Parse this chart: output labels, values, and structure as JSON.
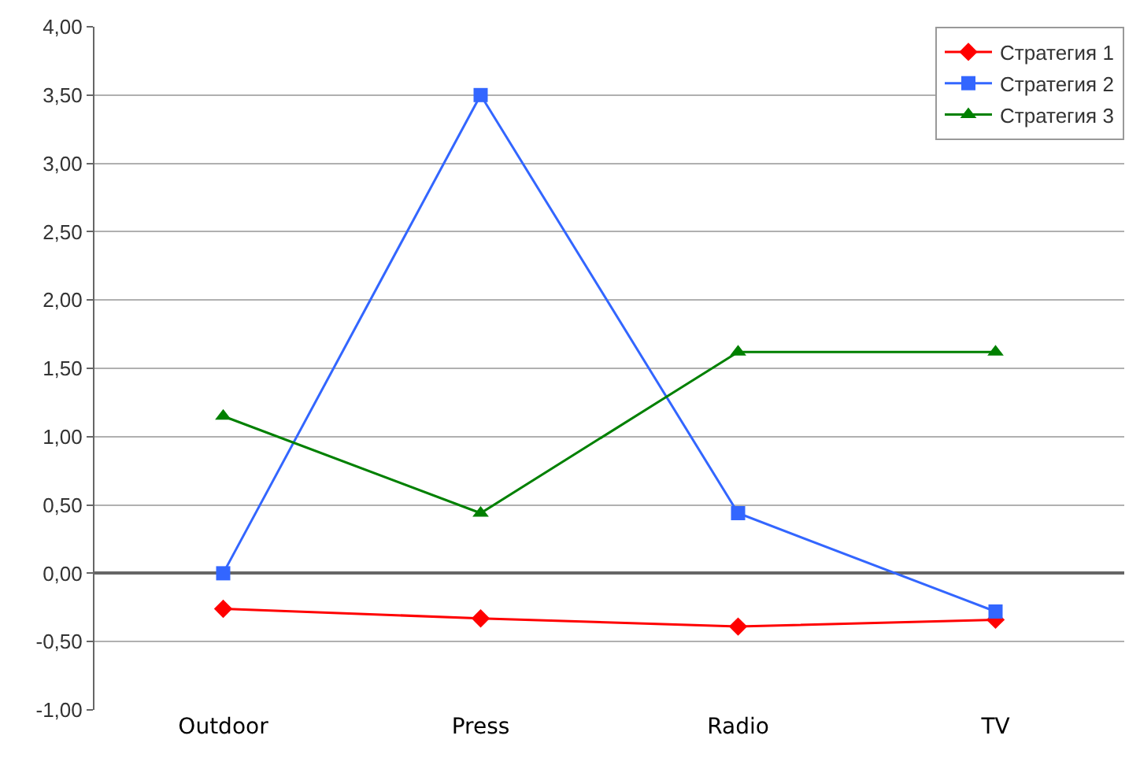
{
  "chart_data": {
    "type": "line",
    "categories": [
      "Outdoor",
      "Press",
      "Radio",
      "TV"
    ],
    "series": [
      {
        "name": "Стратегия 1",
        "color": "#ff0000",
        "marker": "diamond",
        "values": [
          -0.26,
          -0.33,
          -0.39,
          -0.34
        ]
      },
      {
        "name": "Стратегия 2",
        "color": "#3366ff",
        "marker": "square",
        "values": [
          0.0,
          3.5,
          0.44,
          -0.28
        ]
      },
      {
        "name": "Стратегия 3",
        "color": "#008000",
        "marker": "triangle",
        "values": [
          1.15,
          0.44,
          1.62,
          1.62
        ]
      }
    ],
    "ylim": [
      -1,
      4
    ],
    "yticks": [
      {
        "value": -1,
        "label": "-1,00"
      },
      {
        "value": -0.5,
        "label": "-0,50"
      },
      {
        "value": 0,
        "label": "0,00"
      },
      {
        "value": 0.5,
        "label": "0,50"
      },
      {
        "value": 1,
        "label": "1,00"
      },
      {
        "value": 1.5,
        "label": "1,50"
      },
      {
        "value": 2,
        "label": "2,00"
      },
      {
        "value": 2.5,
        "label": "2,50"
      },
      {
        "value": 3,
        "label": "3,00"
      },
      {
        "value": 3.5,
        "label": "3,50"
      },
      {
        "value": 4,
        "label": "4,00"
      }
    ],
    "grid": "y",
    "legend": "top right",
    "line_style": "solid"
  }
}
